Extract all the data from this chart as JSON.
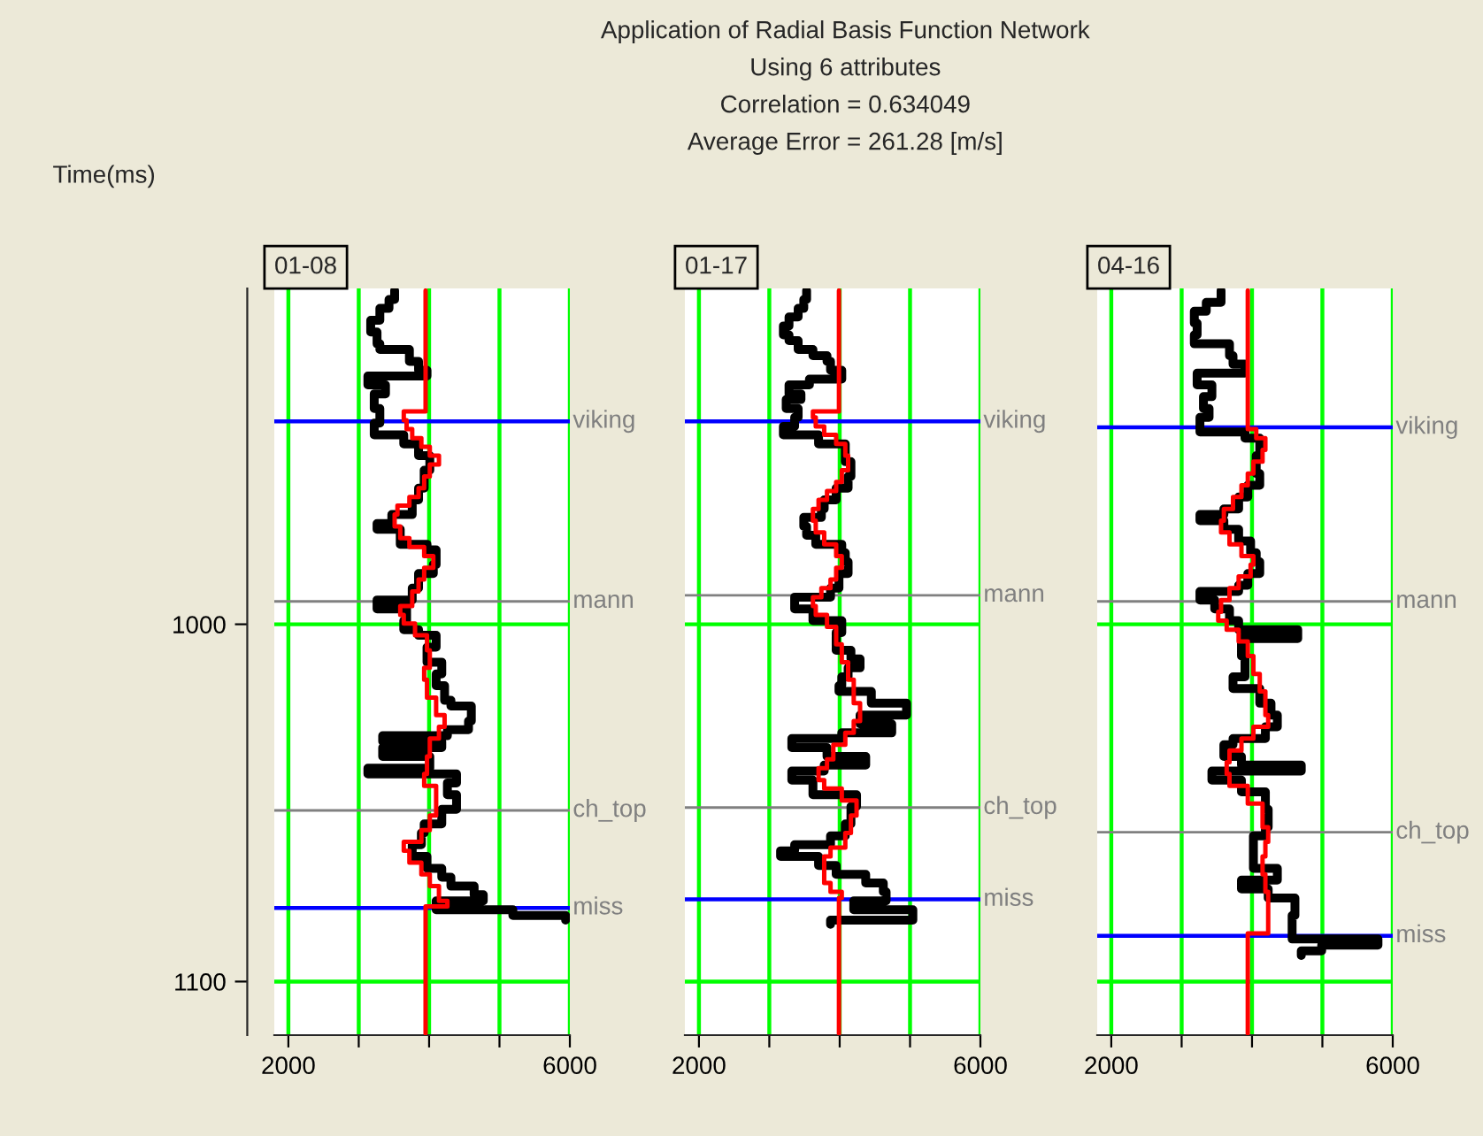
{
  "chart_data": [
    {
      "type": "step",
      "orientation": "horizontal",
      "title": "01-08",
      "ylabel": "Time(ms)",
      "annotations": [
        "Application of Radial Basis Function Network",
        "Using 6 attributes",
        "Correlation = 0.634049",
        "Average Error = 261.28 [m/s]"
      ],
      "xlim": [
        1800,
        6000
      ],
      "ylim": [
        1115,
        906
      ],
      "xticks": [
        2000,
        {
          "value": 3000,
          "label": null
        },
        {
          "value": 4000,
          "label": null
        },
        {
          "value": 5000,
          "label": null
        },
        6000
      ],
      "yticks": [
        1000,
        1100
      ],
      "grid": true,
      "series": [
        {
          "color": "#000000",
          "x": [
            906.6,
            909.1,
            911.6,
            914.9,
            918.2,
            921.5,
            923.1,
            926.4,
            928.9,
            930.5,
            933.0,
            935.5,
            939.6,
            943.7,
            947.0,
            949.5,
            952.8,
            956.9,
            961.9,
            965.2,
            969.3,
            971.8,
            973.4,
            977.6,
            979.2,
            983.3,
            985.8,
            989.9,
            993.2,
            995.7,
            999.0,
            1001.5,
            1003.1,
            1006.4,
            1010.6,
            1013.9,
            1017.2,
            1021.3,
            1022.9,
            1027.1,
            1029.5,
            1031.2,
            1032.8,
            1034.5,
            1037.0,
            1040.3,
            1041.9,
            1044.4,
            1047.7,
            1051.8,
            1055.9,
            1058.4,
            1061.7,
            1065.0,
            1068.3,
            1070.8,
            1073.3,
            1075.7,
            1077.4,
            1079.9,
            1081.5,
            1082.8
          ],
          "values": [
            3510,
            3430,
            3300,
            3170,
            3260,
            3300,
            3720,
            3850,
            3970,
            3130,
            3380,
            3220,
            3300,
            3220,
            3640,
            3850,
            4010,
            3930,
            3850,
            3760,
            3470,
            3260,
            3590,
            3970,
            4100,
            4060,
            3850,
            3760,
            3260,
            3680,
            3640,
            3850,
            4100,
            3970,
            4180,
            4100,
            4220,
            4310,
            4600,
            4560,
            4260,
            3340,
            4180,
            3340,
            4010,
            3130,
            4390,
            4260,
            4390,
            4180,
            3930,
            3890,
            3760,
            3970,
            4180,
            4310,
            4640,
            4770,
            4100,
            5190,
            5940,
            5940
          ]
        },
        {
          "color": "#ff0000",
          "x": [
            906.6,
            940.4,
            942.9,
            945.4,
            947.9,
            950.3,
            952.8,
            955.3,
            958.6,
            961.9,
            964.4,
            966.8,
            969.3,
            972.6,
            975.9,
            978.4,
            980.9,
            984.2,
            987.5,
            990.8,
            994.9,
            997.4,
            999.8,
            1003.1,
            1007.3,
            1012.2,
            1015.5,
            1020.5,
            1025.4,
            1028.7,
            1032.0,
            1037.0,
            1041.9,
            1045.2,
            1048.5,
            1053.5,
            1057.6,
            1060.9,
            1063.4,
            1066.7,
            1070.0,
            1073.3,
            1077.4,
            1079.0,
            1114.5
          ],
          "values": [
            3950,
            3640,
            3680,
            3760,
            3890,
            4010,
            4140,
            4010,
            3930,
            3850,
            3720,
            3550,
            3510,
            3590,
            3720,
            3930,
            4060,
            3930,
            3850,
            3760,
            3590,
            3640,
            3800,
            3970,
            4010,
            3930,
            3970,
            4100,
            4220,
            4140,
            4010,
            3970,
            3930,
            4100,
            4100,
            4010,
            3890,
            3640,
            3720,
            3890,
            4010,
            4140,
            4260,
            3950,
            3950
          ]
        }
      ],
      "ref_lines": [
        {
          "axis": "y",
          "value": 943.2,
          "label": "viking",
          "color": "#0000ff"
        },
        {
          "axis": "y",
          "value": 993.6,
          "label": "mann",
          "color": "#808080"
        },
        {
          "axis": "y",
          "value": 1052.1,
          "label": "ch_top",
          "color": "#808080"
        },
        {
          "axis": "y",
          "value": 1079.4,
          "label": "miss",
          "color": "#0000ff"
        }
      ]
    },
    {
      "type": "step",
      "orientation": "horizontal",
      "title": "01-17",
      "tick_labels": "x",
      "xlim": [
        1800,
        6000
      ],
      "ylim": [
        1115,
        906
      ],
      "xticks": [
        2000,
        {
          "value": 3000,
          "label": null
        },
        {
          "value": 4000,
          "label": null
        },
        {
          "value": 5000,
          "label": null
        },
        6000
      ],
      "yticks": [
        1000,
        1100
      ],
      "grid": true,
      "series": [
        {
          "color": "#000000",
          "x": [
            906.6,
            909.1,
            911.6,
            914.0,
            916.5,
            919.0,
            920.6,
            923.1,
            924.8,
            926.4,
            928.9,
            931.4,
            933.0,
            935.5,
            937.1,
            939.6,
            942.1,
            944.6,
            947.0,
            949.5,
            954.5,
            958.6,
            961.9,
            965.2,
            967.7,
            970.1,
            972.6,
            975.1,
            977.6,
            980.0,
            982.5,
            985.8,
            989.9,
            992.4,
            995.7,
            999.0,
            1002.3,
            1007.3,
            1009.7,
            1012.2,
            1014.7,
            1017.2,
            1018.8,
            1022.1,
            1025.4,
            1027.9,
            1030.4,
            1032.0,
            1034.5,
            1037.0,
            1039.4,
            1041.1,
            1043.6,
            1047.7,
            1051.0,
            1055.9,
            1059.2,
            1061.7,
            1063.4,
            1065.0,
            1067.5,
            1070.0,
            1072.4,
            1074.9,
            1077.4,
            1079.9,
            1082.8,
            1084.0
          ],
          "values": [
            3530,
            3490,
            3410,
            3280,
            3200,
            3280,
            3410,
            3620,
            3820,
            3870,
            4030,
            3570,
            3280,
            3450,
            3240,
            3410,
            3360,
            3200,
            3700,
            4080,
            4160,
            4120,
            3950,
            3780,
            3740,
            3490,
            3530,
            3660,
            4030,
            4080,
            4120,
            3990,
            3870,
            3360,
            3620,
            4030,
            3950,
            4160,
            4290,
            4120,
            4030,
            3990,
            4450,
            4950,
            4290,
            4740,
            4030,
            3320,
            3820,
            4370,
            3780,
            3320,
            3620,
            4240,
            4160,
            4080,
            3870,
            3360,
            3160,
            3700,
            3950,
            4370,
            4620,
            4660,
            4200,
            5040,
            3870,
            3870
          ]
        },
        {
          "color": "#ff0000",
          "x": [
            906.6,
            940.4,
            942.1,
            944.6,
            947.0,
            949.5,
            952.8,
            956.9,
            960.2,
            962.7,
            965.2,
            967.7,
            971.0,
            974.3,
            977.6,
            980.9,
            984.2,
            987.5,
            989.9,
            992.4,
            994.9,
            997.4,
            1000.7,
            1005.6,
            1010.6,
            1015.5,
            1022.1,
            1027.1,
            1030.4,
            1033.7,
            1037.8,
            1040.3,
            1043.6,
            1046.0,
            1049.3,
            1053.5,
            1058.4,
            1062.5,
            1065.0,
            1068.3,
            1072.4,
            1074.9,
            1076.6,
            1114.5
          ],
          "values": [
            3990,
            3620,
            3660,
            3780,
            3950,
            4080,
            4120,
            4030,
            3950,
            3820,
            3700,
            3620,
            3660,
            3780,
            3950,
            4030,
            3950,
            3870,
            3740,
            3620,
            3660,
            3820,
            3950,
            4030,
            4120,
            4200,
            4290,
            4200,
            4080,
            3910,
            3820,
            3700,
            3780,
            4030,
            4240,
            4160,
            4080,
            3870,
            3780,
            3780,
            3870,
            4030,
            3990,
            3990
          ]
        }
      ],
      "ref_lines": [
        {
          "axis": "y",
          "value": 943.2,
          "label": "viking",
          "color": "#0000ff"
        },
        {
          "axis": "y",
          "value": 991.9,
          "label": "mann",
          "color": "#808080"
        },
        {
          "axis": "y",
          "value": 1051.3,
          "label": "ch_top",
          "color": "#808080"
        },
        {
          "axis": "y",
          "value": 1077.0,
          "label": "miss",
          "color": "#0000ff"
        }
      ]
    },
    {
      "type": "step",
      "orientation": "horizontal",
      "title": "04-16",
      "tick_labels": "x",
      "xlim": [
        1800,
        6000
      ],
      "ylim": [
        1115,
        906
      ],
      "xticks": [
        2000,
        {
          "value": 3000,
          "label": null
        },
        {
          "value": 4000,
          "label": null
        },
        {
          "value": 5000,
          "label": null
        },
        6000
      ],
      "yticks": [
        1000,
        1100
      ],
      "grid": true,
      "series": [
        {
          "color": "#000000",
          "x": [
            906.6,
            909.9,
            912.4,
            915.7,
            919.0,
            921.5,
            924.8,
            927.2,
            929.7,
            933.0,
            936.3,
            939.6,
            942.1,
            943.7,
            946.2,
            947.9,
            952.8,
            957.8,
            961.1,
            964.4,
            967.7,
            969.3,
            971.0,
            973.4,
            976.7,
            980.0,
            982.5,
            985.8,
            989.1,
            990.8,
            993.2,
            995.7,
            999.0,
            1001.5,
            1004.0,
            1008.9,
            1012.2,
            1014.7,
            1018.0,
            1022.1,
            1025.4,
            1028.7,
            1032.0,
            1033.7,
            1037.0,
            1039.4,
            1041.1,
            1043.6,
            1046.9,
            1051.8,
            1056.8,
            1059.2,
            1065.0,
            1068.3,
            1071.6,
            1074.1,
            1076.6,
            1081.5,
            1086.5,
            1088.1,
            1089.8,
            1091.4,
            1092.7
          ],
          "values": [
            3560,
            3350,
            3180,
            3220,
            3180,
            3680,
            3730,
            3900,
            3220,
            3430,
            3310,
            3390,
            3260,
            3260,
            3900,
            4110,
            4060,
            4110,
            3940,
            3810,
            3600,
            3260,
            3600,
            3810,
            3980,
            4060,
            4110,
            3940,
            3810,
            3260,
            3470,
            3680,
            3810,
            4650,
            3850,
            3900,
            3900,
            3730,
            4110,
            4270,
            4360,
            4190,
            3730,
            3600,
            3850,
            4700,
            3430,
            3850,
            4190,
            4230,
            4190,
            4020,
            4020,
            4360,
            3850,
            4230,
            4610,
            4570,
            4570,
            5790,
            4990,
            4700,
            4700
          ]
        },
        {
          "color": "#ff0000",
          "x": [
            906.6,
            945.4,
            947.9,
            951.2,
            954.5,
            957.8,
            961.1,
            964.4,
            967.7,
            971.0,
            974.3,
            977.6,
            980.9,
            983.3,
            986.6,
            989.9,
            993.2,
            996.5,
            999.0,
            1001.5,
            1004.8,
            1008.9,
            1013.9,
            1018.8,
            1025.4,
            1028.7,
            1032.0,
            1035.3,
            1038.6,
            1041.9,
            1045.2,
            1050.2,
            1056.8,
            1060.9,
            1065.0,
            1070.0,
            1074.9,
            1086.5,
            1114.5
          ],
          "values": [
            3940,
            4060,
            4190,
            4150,
            4020,
            3940,
            3850,
            3730,
            3600,
            3560,
            3680,
            3850,
            4020,
            3980,
            3810,
            3680,
            3560,
            3520,
            3640,
            3810,
            3940,
            4020,
            4110,
            4190,
            4230,
            4020,
            3850,
            3680,
            3640,
            3680,
            3940,
            4150,
            4230,
            4190,
            4150,
            4190,
            4230,
            3940,
            3940
          ]
        }
      ],
      "ref_lines": [
        {
          "axis": "y",
          "value": 944.9,
          "label": "viking",
          "color": "#0000ff"
        },
        {
          "axis": "y",
          "value": 993.6,
          "label": "mann",
          "color": "#808080"
        },
        {
          "axis": "y",
          "value": 1058.2,
          "label": "ch_top",
          "color": "#808080"
        },
        {
          "axis": "y",
          "value": 1087.2,
          "label": "miss",
          "color": "#0000ff"
        }
      ]
    }
  ]
}
